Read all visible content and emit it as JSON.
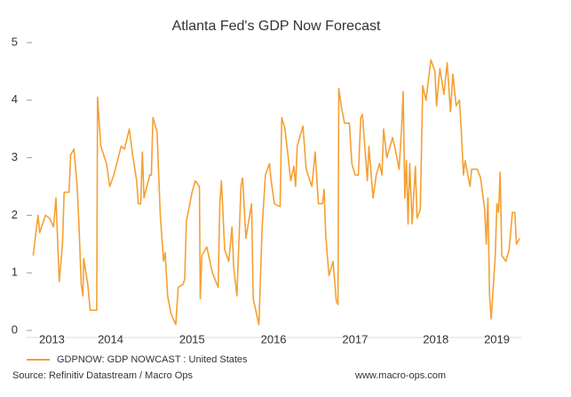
{
  "chart_data": {
    "type": "line",
    "title": "Atlanta Fed's GDP Now Forecast",
    "x": [
      2013.55,
      2013.61,
      2013.63,
      2013.7,
      2013.75,
      2013.8,
      2013.83,
      2013.87,
      2013.91,
      2013.93,
      2013.99,
      2014.01,
      2014.05,
      2014.09,
      2014.11,
      2014.14,
      2014.16,
      2014.17,
      2014.22,
      2014.25,
      2014.33,
      2014.34,
      2014.38,
      2014.45,
      2014.49,
      2014.54,
      2014.63,
      2014.67,
      2014.73,
      2014.77,
      2014.82,
      2014.84,
      2014.87,
      2014.89,
      2014.91,
      2014.98,
      2015.0,
      2015.02,
      2015.07,
      2015.11,
      2015.15,
      2015.17,
      2015.2,
      2015.24,
      2015.3,
      2015.33,
      2015.39,
      2015.41,
      2015.43,
      2015.5,
      2015.54,
      2015.59,
      2015.6,
      2015.62,
      2015.68,
      2015.75,
      2015.82,
      2015.84,
      2015.86,
      2015.9,
      2015.95,
      2015.99,
      2016.01,
      2016.05,
      2016.1,
      2016.12,
      2016.16,
      2016.23,
      2016.25,
      2016.32,
      2016.36,
      2016.4,
      2016.45,
      2016.47,
      2016.51,
      2016.58,
      2016.6,
      2016.64,
      2016.68,
      2016.71,
      2016.75,
      2016.77,
      2016.79,
      2016.86,
      2016.9,
      2016.97,
      2017.01,
      2017.05,
      2017.1,
      2017.12,
      2017.14,
      2017.18,
      2017.23,
      2017.27,
      2017.29,
      2017.3,
      2017.33,
      2017.37,
      2017.43,
      2017.46,
      2017.5,
      2017.54,
      2017.57,
      2017.59,
      2017.63,
      2017.65,
      2017.67,
      2017.72,
      2017.76,
      2017.8,
      2017.83,
      2017.85,
      2017.89,
      2017.96,
      2018.0,
      2018.04,
      2018.07,
      2018.09,
      2018.11,
      2018.13,
      2018.15,
      2018.17,
      2018.2,
      2018.24,
      2018.26,
      2018.3,
      2018.33,
      2018.37,
      2018.43,
      2018.48,
      2018.5,
      2018.54,
      2018.59,
      2018.63,
      2018.67,
      2018.7,
      2018.74,
      2018.78,
      2018.8,
      2018.83,
      2018.85,
      2018.91,
      2018.93,
      2019.0,
      2019.04,
      2019.09,
      2019.11,
      2019.13,
      2019.15,
      2019.17,
      2019.22,
      2019.24,
      2019.26,
      2019.28,
      2019.3,
      2019.35,
      2019.39,
      2019.43,
      2019.46,
      2019.48,
      2019.52
    ],
    "series": [
      {
        "name": "GDPNOW: GDP NOWCAST : United States",
        "color": "#f5a033",
        "values": [
          1.3,
          2.0,
          1.7,
          2.0,
          1.95,
          1.8,
          2.3,
          0.85,
          1.5,
          2.4,
          2.4,
          3.05,
          3.15,
          2.5,
          1.9,
          0.8,
          0.6,
          1.25,
          0.8,
          0.35,
          0.35,
          4.05,
          3.2,
          2.9,
          2.5,
          2.7,
          3.2,
          3.15,
          3.5,
          3.05,
          2.6,
          2.2,
          2.2,
          3.1,
          2.3,
          2.7,
          2.7,
          3.7,
          3.45,
          2.0,
          1.2,
          1.35,
          0.6,
          0.3,
          0.1,
          0.75,
          0.8,
          0.9,
          1.9,
          2.4,
          2.6,
          2.5,
          0.55,
          1.3,
          1.45,
          1.0,
          0.75,
          2.2,
          2.6,
          1.4,
          1.2,
          1.8,
          1.1,
          0.6,
          2.5,
          2.65,
          1.6,
          2.2,
          0.55,
          0.1,
          1.8,
          2.7,
          2.9,
          2.6,
          2.2,
          2.15,
          3.7,
          3.5,
          3.0,
          2.6,
          2.85,
          2.5,
          3.2,
          3.55,
          2.8,
          2.5,
          3.1,
          2.2,
          2.2,
          2.45,
          1.65,
          0.95,
          1.2,
          0.5,
          0.45,
          4.2,
          3.9,
          3.6,
          3.6,
          2.9,
          2.7,
          2.7,
          3.7,
          3.75,
          3.0,
          2.6,
          3.2,
          2.3,
          2.7,
          2.9,
          2.7,
          3.5,
          3.0,
          3.35,
          3.1,
          2.8,
          3.5,
          4.15,
          2.3,
          2.95,
          1.85,
          2.9,
          1.85,
          2.85,
          1.95,
          2.1,
          4.25,
          4.0,
          4.7,
          4.5,
          3.9,
          4.55,
          4.1,
          4.65,
          3.8,
          4.45,
          3.9,
          4.0,
          3.55,
          2.7,
          2.95,
          2.5,
          2.8,
          2.8,
          2.65,
          2.1,
          1.5,
          2.3,
          0.6,
          0.2,
          1.3,
          2.2,
          2.05,
          2.75,
          1.3,
          1.2,
          1.4,
          2.05,
          2.05,
          1.5,
          1.6
        ]
      }
    ],
    "xlim": [
      2013.47,
      2019.55
    ],
    "xticks": [
      {
        "value": 2013.78,
        "label": "2013"
      },
      {
        "value": 2014.5,
        "label": "2014"
      },
      {
        "value": 2015.5,
        "label": "2015"
      },
      {
        "value": 2016.5,
        "label": "2016"
      },
      {
        "value": 2017.5,
        "label": "2017"
      },
      {
        "value": 2018.49,
        "label": "2018"
      },
      {
        "value": 2019.24,
        "label": "2019"
      }
    ],
    "ylim": [
      0,
      5
    ],
    "yticks": [
      0,
      1,
      2,
      3,
      4,
      5
    ],
    "grid": false,
    "source": "Source: Refinitiv Datastream / Macro Ops",
    "website": "www.macro-ops.com"
  }
}
